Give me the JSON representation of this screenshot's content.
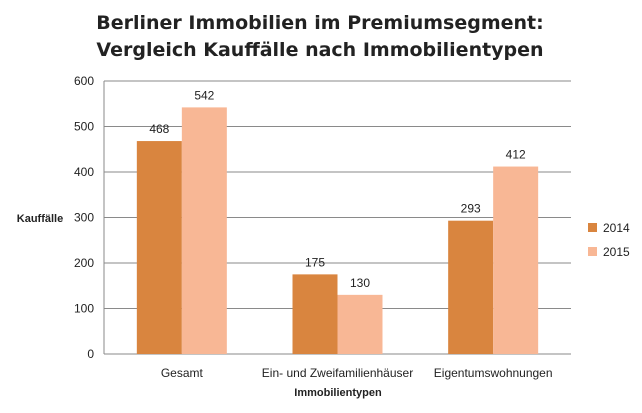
{
  "chart_data": {
    "type": "bar",
    "title": [
      "Berliner Immobilien im Premiumsegment:",
      "Vergleich Kauffälle nach Immobilientypen"
    ],
    "xlabel": "Immobilientypen",
    "ylabel": "Kauffälle",
    "categories": [
      "Gesamt",
      "Ein- und Zweifamilienhäuser",
      "Eigentumswohnungen"
    ],
    "series": [
      {
        "name": "2014",
        "values": [
          468,
          175,
          293
        ],
        "color": "#d9853f"
      },
      {
        "name": "2015",
        "values": [
          542,
          130,
          412
        ],
        "color": "#f8b795"
      }
    ],
    "ylim": [
      0,
      600
    ],
    "yticks": [
      0,
      100,
      200,
      300,
      400,
      500,
      600
    ],
    "grid": true,
    "legend": "right"
  }
}
